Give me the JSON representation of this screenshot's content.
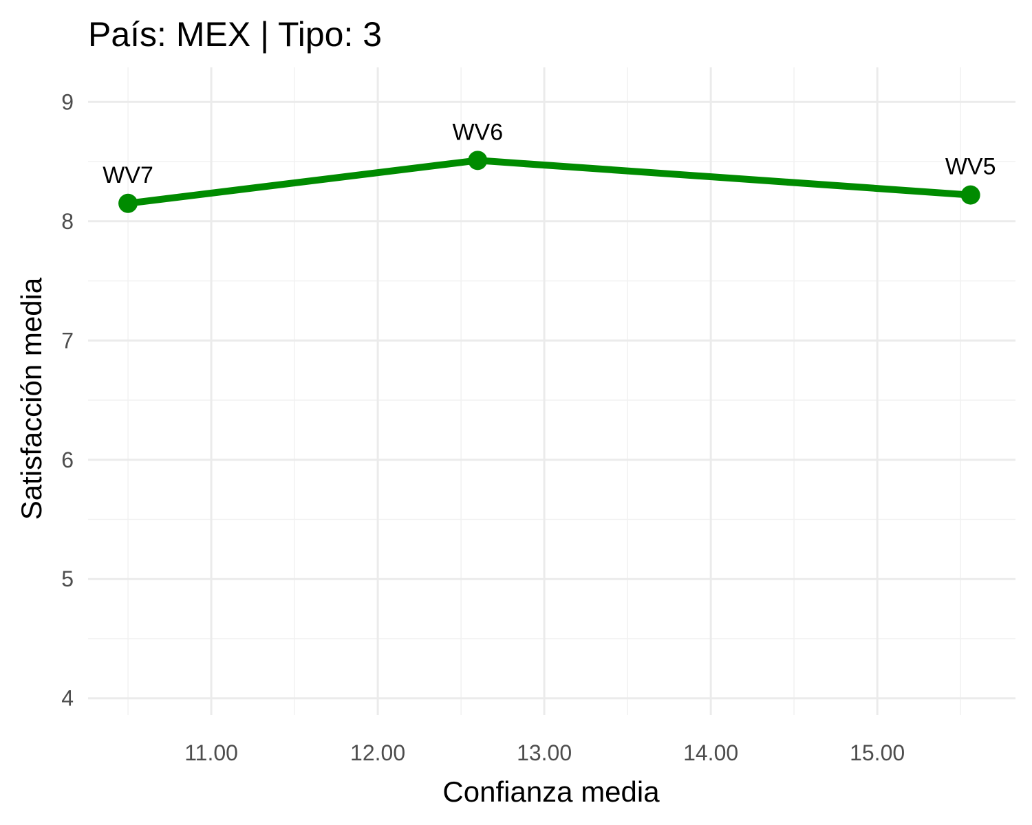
{
  "chart_data": {
    "type": "line",
    "title": "País: MEX | Tipo: 3",
    "xlabel": "Confianza media",
    "ylabel": "Satisfacción media",
    "xlim": [
      10.26,
      15.83
    ],
    "ylim": [
      3.86,
      9.29
    ],
    "x_ticks": [
      11,
      12,
      13,
      14,
      15
    ],
    "x_tick_labels": [
      "11.00",
      "12.00",
      "13.00",
      "14.00",
      "15.00"
    ],
    "x_minor_ticks": [
      10.5,
      11.5,
      12.5,
      13.5,
      14.5,
      15.5
    ],
    "y_ticks": [
      4,
      5,
      6,
      7,
      8,
      9
    ],
    "y_tick_labels": [
      "4",
      "5",
      "6",
      "7",
      "8",
      "9"
    ],
    "y_minor_ticks": [
      4.5,
      5.5,
      6.5,
      7.5,
      8.5
    ],
    "grid": true,
    "series": [
      {
        "name": "MEX",
        "color": "#008b00",
        "points": [
          {
            "label": "WV7",
            "x": 10.5,
            "y": 8.15
          },
          {
            "label": "WV6",
            "x": 12.6,
            "y": 8.51
          },
          {
            "label": "WV5",
            "x": 15.56,
            "y": 8.22
          }
        ]
      }
    ]
  }
}
